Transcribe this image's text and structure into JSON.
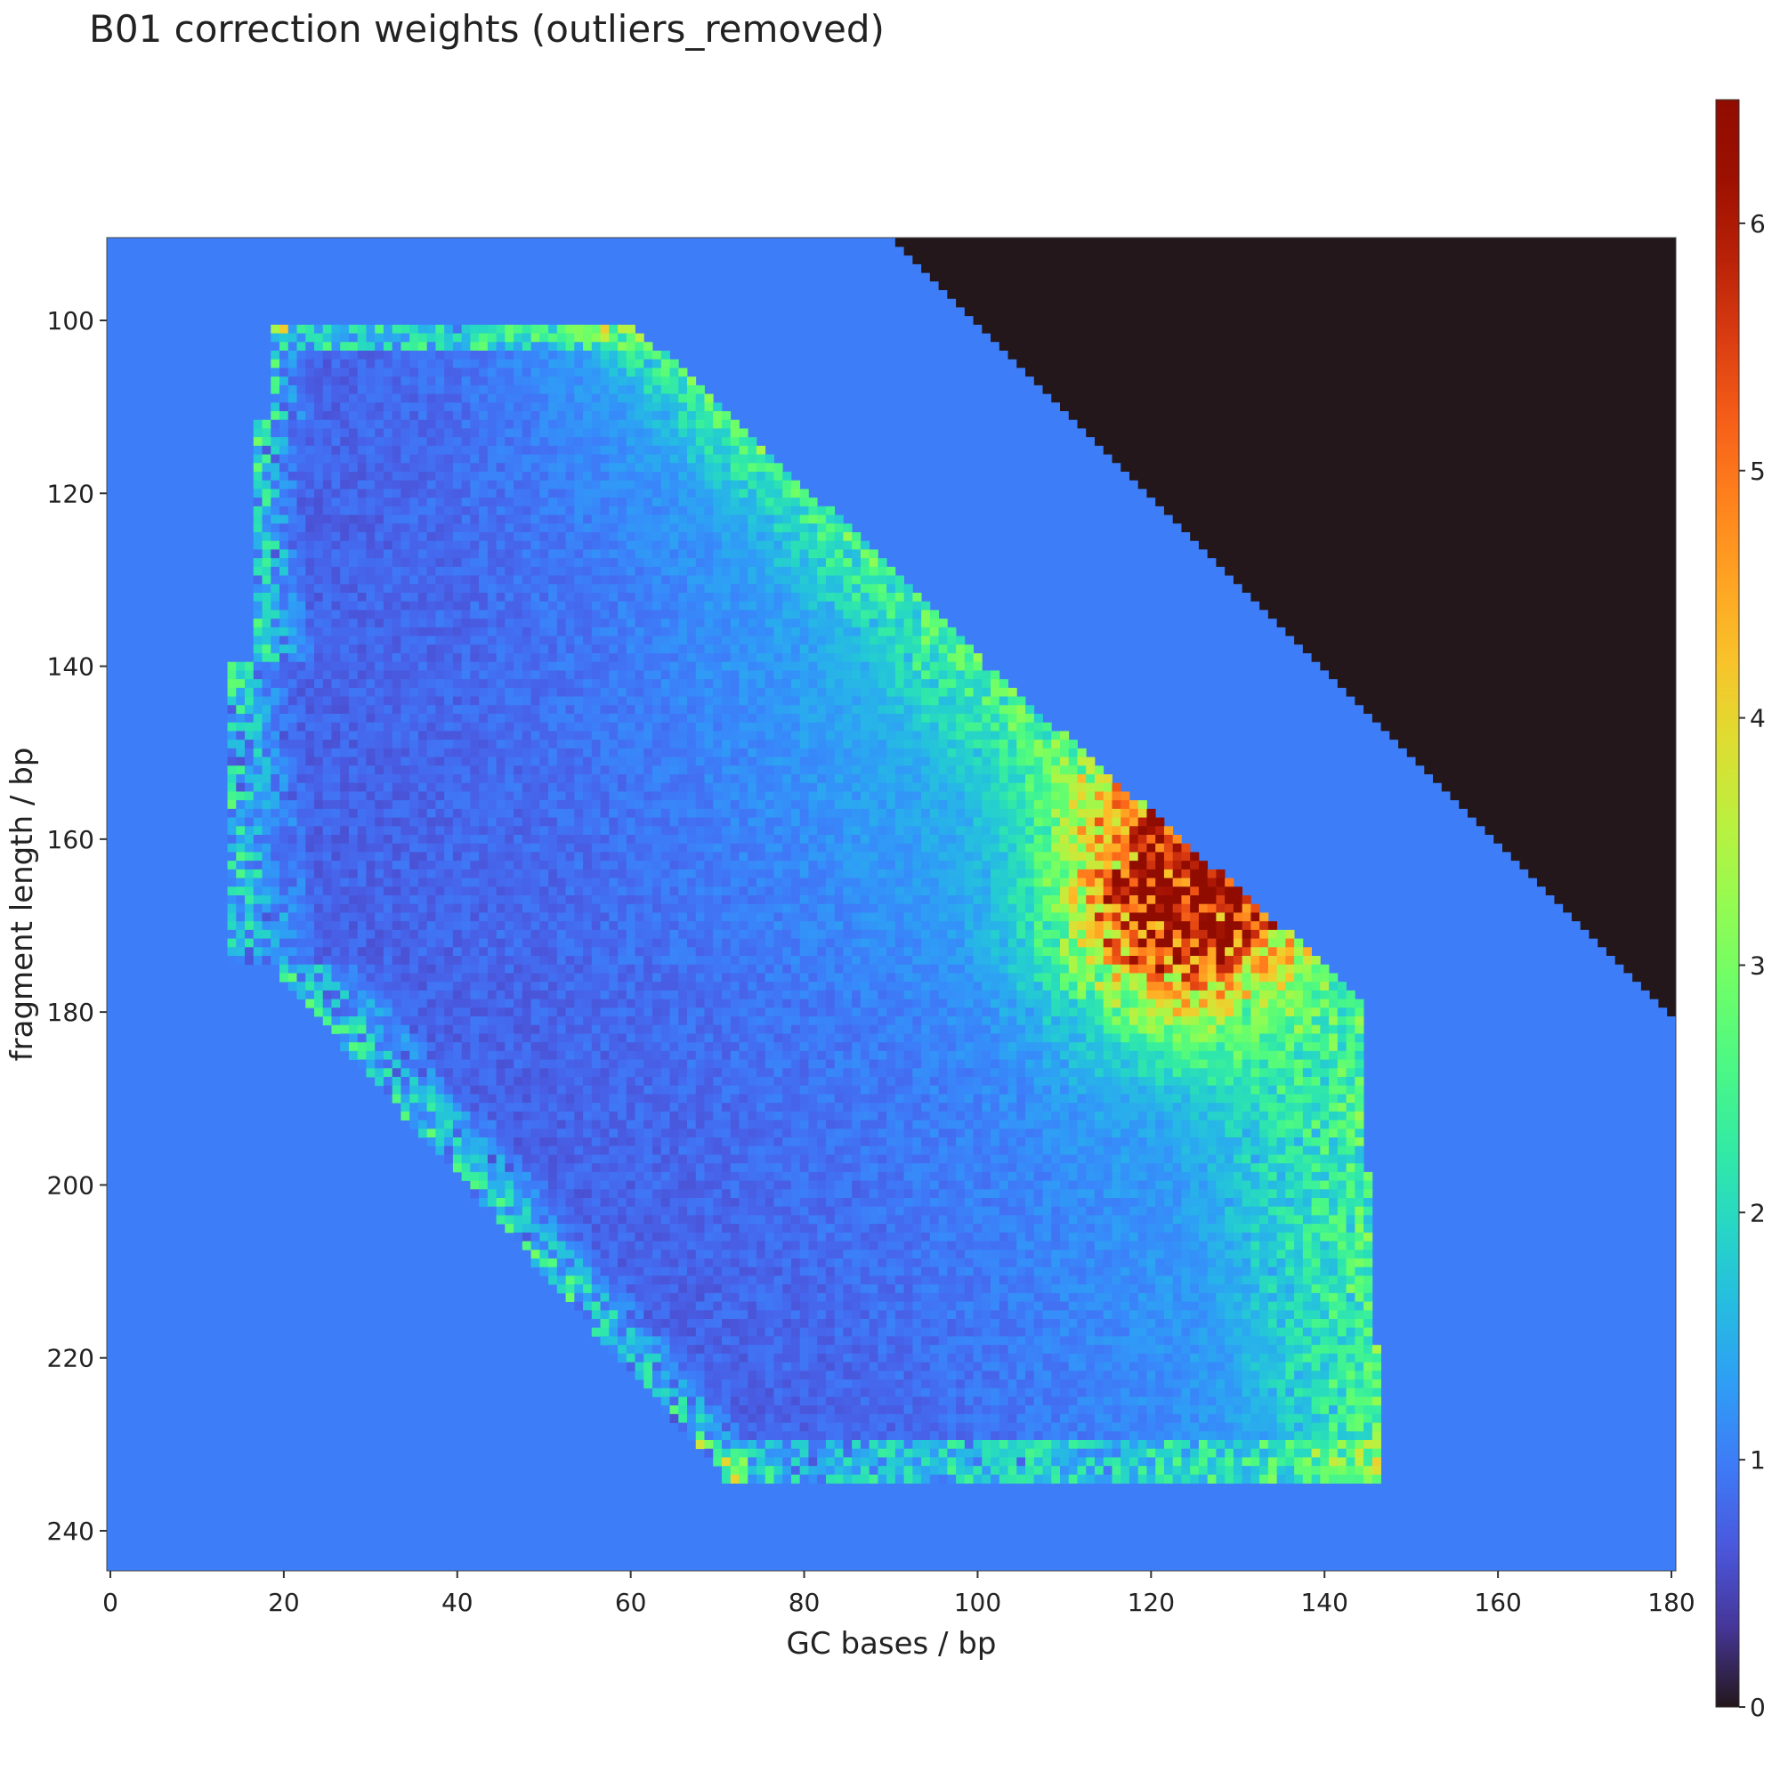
{
  "chart_data": {
    "type": "heatmap",
    "title": "B01 correction weights (outliers_removed)",
    "xlabel": "GC bases / bp",
    "ylabel": "fragment length / bp",
    "x_range": [
      0,
      180
    ],
    "y_range": [
      91,
      245
    ],
    "y_inverted": true,
    "x_ticks": [
      "0",
      "20",
      "40",
      "60",
      "80",
      "100",
      "120",
      "140",
      "160",
      "180"
    ],
    "y_ticks": [
      "100",
      "120",
      "140",
      "160",
      "180",
      "200",
      "220",
      "240"
    ],
    "colorbar": {
      "colormap": "turbo",
      "range": [
        0,
        6.5
      ],
      "ticks": [
        "0",
        "1",
        "2",
        "3",
        "4",
        "5",
        "6"
      ]
    },
    "regions": [
      {
        "name": "default weight outside observed data",
        "value": 1.0
      },
      {
        "name": "impossible region (GC bases > fragment length)",
        "value": 0.0
      },
      {
        "name": "observed region",
        "gc_range": [
          17,
          148
        ],
        "length_range": [
          101,
          234
        ]
      },
      {
        "name": "high-weight cluster",
        "gc_center": 123,
        "length_center": 167,
        "peak_value": 6.5
      }
    ],
    "grid": false,
    "legend": "colorbar-right"
  }
}
